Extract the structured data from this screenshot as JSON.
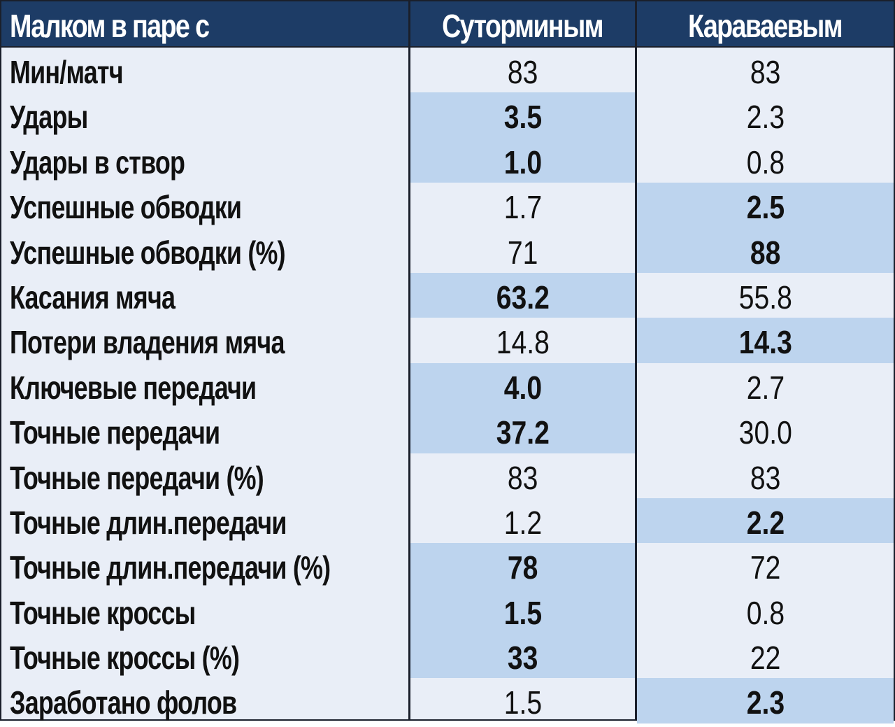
{
  "header": {
    "label": "Малком в паре с",
    "col1": "Суторминым",
    "col2": "Караваевым"
  },
  "colors": {
    "header_bg": "#1d3c66",
    "row_bg": "#e9eef7",
    "highlight_bg": "#bdd4ee"
  },
  "rows": [
    {
      "label": "Мин/матч",
      "v1": "83",
      "v2": "83",
      "best": ""
    },
    {
      "label": "Удары",
      "v1": "3.5",
      "v2": "2.3",
      "best": "v1"
    },
    {
      "label": "Удары в створ",
      "v1": "1.0",
      "v2": "0.8",
      "best": "v1"
    },
    {
      "label": "Успешные обводки",
      "v1": "1.7",
      "v2": "2.5",
      "best": "v2"
    },
    {
      "label": "Успешные обводки (%)",
      "v1": "71",
      "v2": "88",
      "best": "v2"
    },
    {
      "label": "Касания мяча",
      "v1": "63.2",
      "v2": "55.8",
      "best": "v1"
    },
    {
      "label": "Потери владения мяча",
      "v1": "14.8",
      "v2": "14.3",
      "best": "v2"
    },
    {
      "label": "Ключевые передачи",
      "v1": "4.0",
      "v2": "2.7",
      "best": "v1"
    },
    {
      "label": "Точные передачи",
      "v1": "37.2",
      "v2": "30.0",
      "best": "v1"
    },
    {
      "label": "Точные передачи (%)",
      "v1": "83",
      "v2": "83",
      "best": ""
    },
    {
      "label": "Точные длин.передачи",
      "v1": "1.2",
      "v2": "2.2",
      "best": "v2"
    },
    {
      "label": "Точные длин.передачи (%)",
      "v1": "78",
      "v2": "72",
      "best": "v1"
    },
    {
      "label": "Точные кроссы",
      "v1": "1.5",
      "v2": "0.8",
      "best": "v1"
    },
    {
      "label": "Точные кроссы (%)",
      "v1": "33",
      "v2": "22",
      "best": "v1"
    },
    {
      "label": "Заработано фолов",
      "v1": "1.5",
      "v2": "2.3",
      "best": "v2"
    }
  ]
}
